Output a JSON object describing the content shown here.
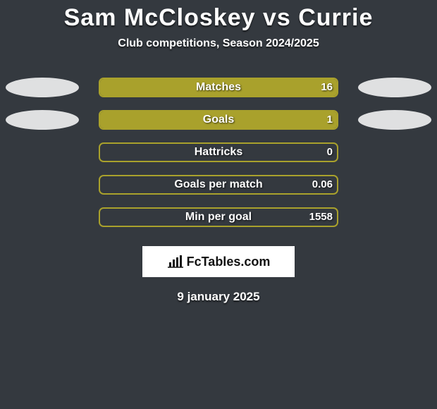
{
  "title": {
    "text": "Sam McCloskey vs Currie",
    "fontsize": 34,
    "color": "#ffffff"
  },
  "subtitle": {
    "text": "Club competitions, Season 2024/2025",
    "fontsize": 16,
    "color": "#ffffff"
  },
  "background_color": "#34393f",
  "bar_color": "#a9a12c",
  "bar_border_color": "#a9a12c",
  "oval_color": "#dfe0e1",
  "logo": {
    "text": "FcTables.com",
    "bg": "#ffffff",
    "fg": "#111111"
  },
  "date": {
    "text": "9 january 2025",
    "fontsize": 17
  },
  "rows": [
    {
      "label": "Matches",
      "left_val": "",
      "right_val": "16",
      "left_fill_pct": 0,
      "right_fill_pct": 100,
      "left_oval": true,
      "right_oval": true
    },
    {
      "label": "Goals",
      "left_val": "",
      "right_val": "1",
      "left_fill_pct": 0,
      "right_fill_pct": 100,
      "left_oval": true,
      "right_oval": true
    },
    {
      "label": "Hattricks",
      "left_val": "",
      "right_val": "0",
      "left_fill_pct": 0,
      "right_fill_pct": 0,
      "left_oval": false,
      "right_oval": false
    },
    {
      "label": "Goals per match",
      "left_val": "",
      "right_val": "0.06",
      "left_fill_pct": 0,
      "right_fill_pct": 0,
      "left_oval": false,
      "right_oval": false
    },
    {
      "label": "Min per goal",
      "left_val": "",
      "right_val": "1558",
      "left_fill_pct": 0,
      "right_fill_pct": 0,
      "left_oval": false,
      "right_oval": false
    }
  ]
}
